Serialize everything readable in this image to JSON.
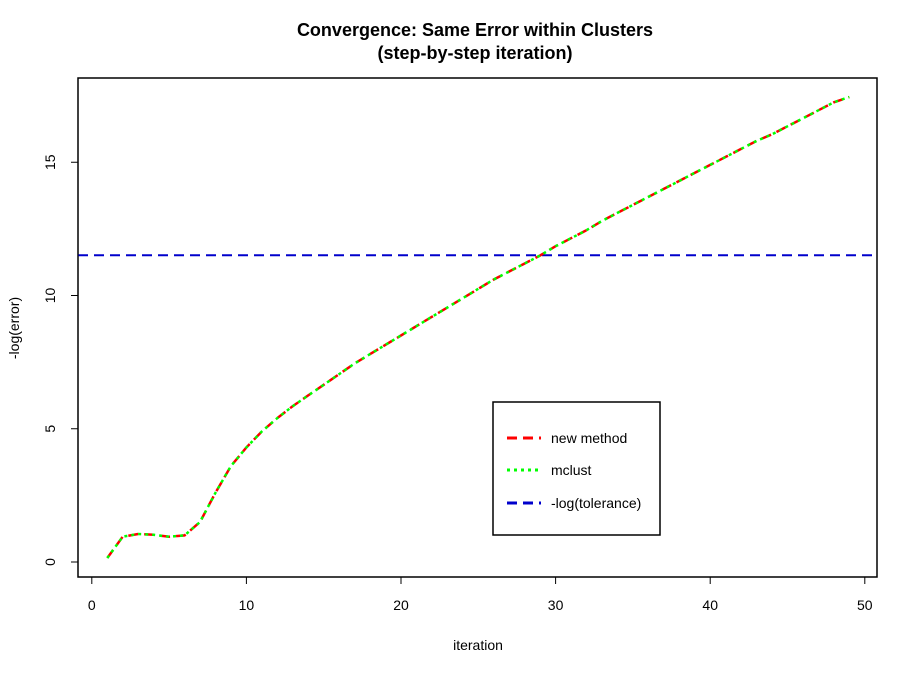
{
  "chart_data": {
    "type": "line",
    "title": "Convergence: Same Error within Clusters",
    "subtitle": "(step-by-step iteration)",
    "xlabel": "iteration",
    "ylabel": "-log(error)",
    "xlim": [
      0,
      50
    ],
    "ylim": [
      0,
      18
    ],
    "xticks": [
      0,
      10,
      20,
      30,
      40,
      50
    ],
    "yticks": [
      0,
      5,
      10,
      15
    ],
    "grid": false,
    "legend_position": "bottom-right",
    "x": [
      1,
      2,
      3,
      4,
      5,
      6,
      7,
      8,
      9,
      10,
      11,
      12,
      13,
      14,
      15,
      16,
      17,
      18,
      19,
      20,
      21,
      22,
      23,
      24,
      25,
      26,
      27,
      28,
      29,
      30,
      31,
      32,
      33,
      34,
      35,
      36,
      37,
      38,
      39,
      40,
      41,
      42,
      43,
      44,
      45,
      46,
      47,
      48,
      49
    ],
    "series": [
      {
        "name": "new method",
        "color": "#ff0000",
        "line_style": "dashed",
        "values": [
          0.15,
          0.95,
          1.05,
          1.02,
          0.95,
          1.0,
          1.5,
          2.6,
          3.6,
          4.3,
          4.9,
          5.4,
          5.85,
          6.25,
          6.65,
          7.05,
          7.45,
          7.8,
          8.15,
          8.5,
          8.85,
          9.2,
          9.55,
          9.9,
          10.25,
          10.6,
          10.9,
          11.2,
          11.5,
          11.85,
          12.15,
          12.45,
          12.8,
          13.1,
          13.4,
          13.7,
          14.0,
          14.3,
          14.6,
          14.9,
          15.2,
          15.5,
          15.8,
          16.05,
          16.35,
          16.65,
          16.95,
          17.25,
          17.45
        ]
      },
      {
        "name": "mclust",
        "color": "#00ff00",
        "line_style": "dotted",
        "values": [
          0.15,
          0.95,
          1.05,
          1.02,
          0.95,
          1.0,
          1.5,
          2.6,
          3.6,
          4.3,
          4.9,
          5.4,
          5.85,
          6.25,
          6.65,
          7.05,
          7.45,
          7.8,
          8.15,
          8.5,
          8.85,
          9.2,
          9.55,
          9.9,
          10.25,
          10.6,
          10.9,
          11.2,
          11.5,
          11.85,
          12.15,
          12.45,
          12.8,
          13.1,
          13.4,
          13.7,
          14.0,
          14.3,
          14.6,
          14.9,
          15.2,
          15.5,
          15.8,
          16.05,
          16.35,
          16.65,
          16.95,
          17.25,
          17.45
        ]
      }
    ],
    "hline": {
      "name": "-log(tolerance)",
      "color": "#0000cc",
      "line_style": "dashed",
      "y": 11.51
    }
  }
}
